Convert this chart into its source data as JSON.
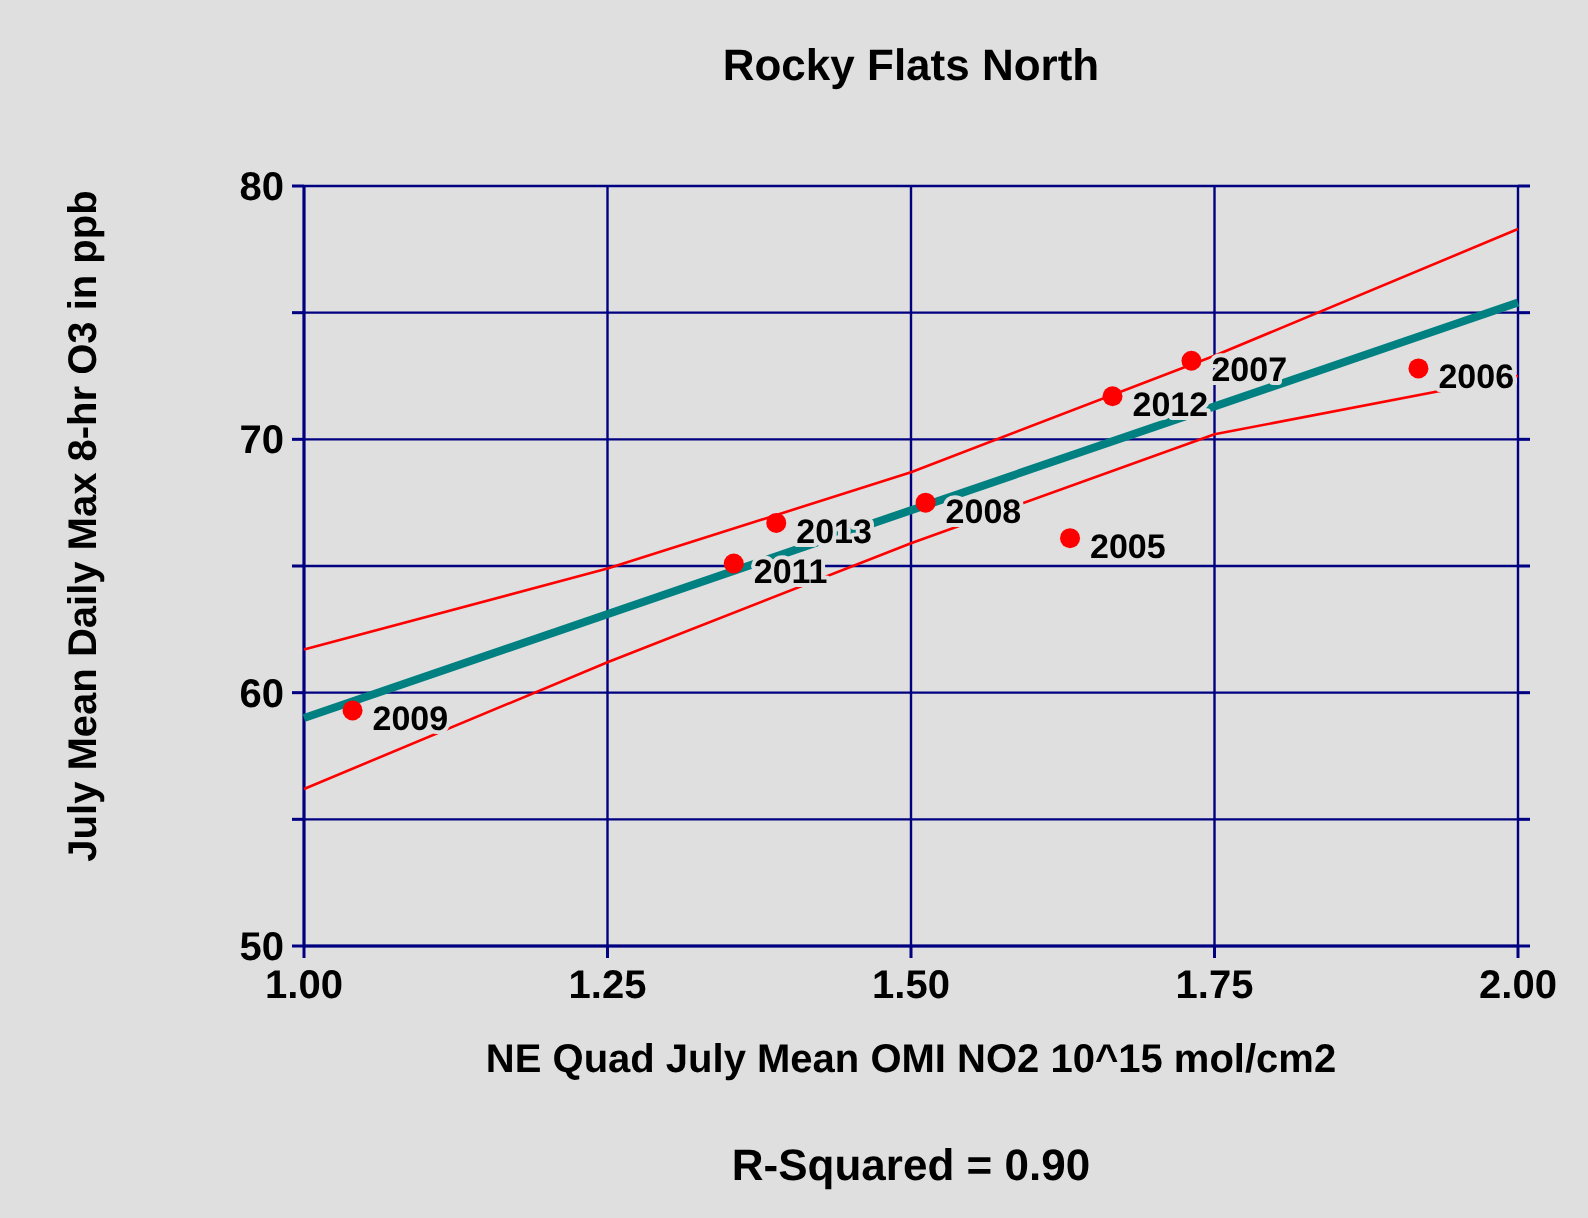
{
  "chart_data": {
    "type": "scatter",
    "title": "Rocky Flats North",
    "xlabel": "NE Quad July Mean OMI NO2 10^15 mol/cm2",
    "ylabel": "July Mean Daily Max 8-hr O3 in ppb",
    "xlim": [
      1.0,
      2.0
    ],
    "xticks": [
      {
        "value": 1.0,
        "label": "1.00"
      },
      {
        "value": 1.25,
        "label": "1.25"
      },
      {
        "value": 1.5,
        "label": "1.50"
      },
      {
        "value": 1.75,
        "label": "1.75"
      },
      {
        "value": 2.0,
        "label": "2.00"
      }
    ],
    "ylim": [
      50,
      80
    ],
    "yticks": [
      50,
      {
        "value": 55,
        "label": null
      },
      60,
      {
        "value": 65,
        "label": null
      },
      70,
      {
        "value": 75,
        "label": null
      },
      80
    ],
    "grid": true,
    "marker": "circle",
    "series": [
      {
        "type": "scatter",
        "color": "#ff0000",
        "x": [
          1.04,
          1.354,
          1.389,
          1.512,
          1.631,
          1.666,
          1.731,
          1.918
        ],
        "values": [
          59.3,
          65.1,
          66.7,
          67.5,
          66.1,
          71.7,
          73.1,
          72.8
        ]
      },
      {
        "type": "line",
        "color": "#ff0000",
        "marker": "none",
        "x": [
          1.0,
          1.25,
          1.5,
          1.75,
          2.0
        ],
        "values": [
          61.7,
          64.9,
          68.7,
          73.3,
          78.3
        ]
      },
      {
        "type": "line",
        "color": "#ff0000",
        "marker": "none",
        "x": [
          1.0,
          1.25,
          1.5,
          1.75,
          2.0
        ],
        "values": [
          56.2,
          61.2,
          65.9,
          70.2,
          72.5
        ]
      },
      {
        "type": "line",
        "color": "#008080",
        "marker": "none",
        "x": [
          1.0,
          2.0
        ],
        "values": [
          59.0,
          75.4
        ]
      }
    ],
    "annotations": [
      {
        "text": "2009",
        "x": 1.04,
        "y": 59.3
      },
      {
        "text": "2011",
        "x": 1.354,
        "y": 65.1
      },
      {
        "text": "2013",
        "x": 1.389,
        "y": 66.7
      },
      {
        "text": "2008",
        "x": 1.512,
        "y": 67.5
      },
      {
        "text": "2005",
        "x": 1.631,
        "y": 66.1
      },
      {
        "text": "2012",
        "x": 1.666,
        "y": 71.7
      },
      {
        "text": "2007",
        "x": 1.731,
        "y": 73.1
      },
      {
        "text": "2006",
        "x": 1.918,
        "y": 72.8
      },
      "R-Squared = 0.90"
    ]
  }
}
